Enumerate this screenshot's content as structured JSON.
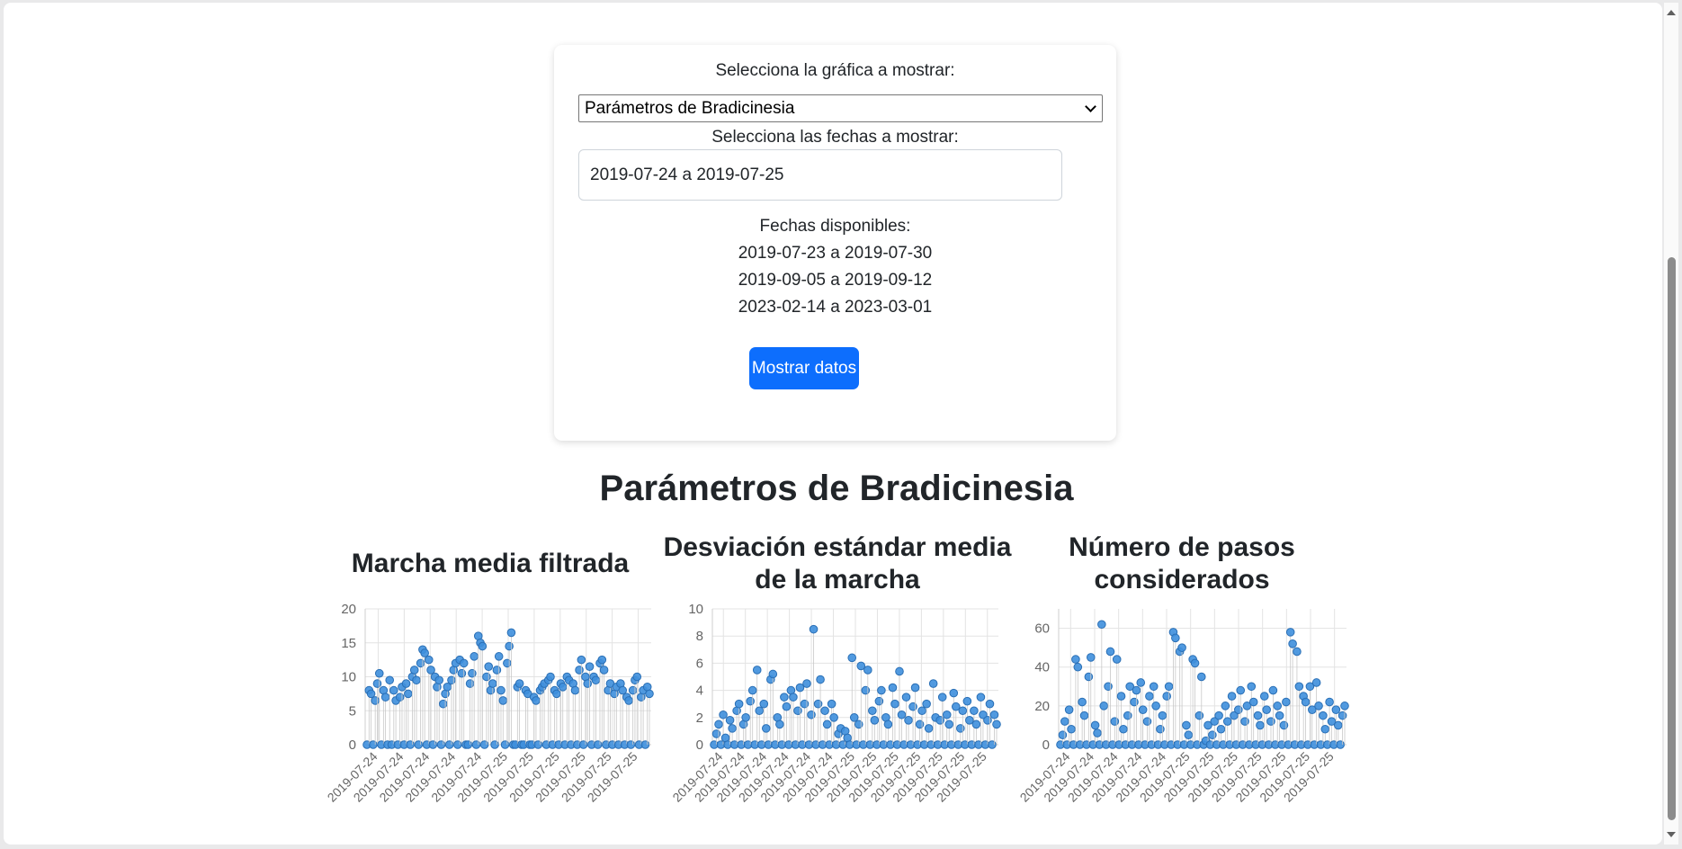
{
  "form": {
    "chart_select_label": "Selecciona la gráfica a mostrar:",
    "chart_select_value": "Parámetros de Bradicinesia",
    "dates_label": "Selecciona las fechas a mostrar:",
    "dates_value": "2019-07-24 a 2019-07-25",
    "available_label": "Fechas disponibles:",
    "available_ranges": [
      "2019-07-23 a 2019-07-30",
      "2019-09-05 a 2019-09-12",
      "2023-02-14 a 2023-03-01"
    ],
    "submit_label": "Mostrar datos"
  },
  "section_title": "Parámetros de Bradicinesia",
  "colors": {
    "accent": "#0d6efd",
    "point": "#3e8fdd",
    "point_stroke": "#2a6fb5"
  },
  "chart_data": [
    {
      "type": "scatter",
      "title": "Marcha media filtrada",
      "xlabel": "",
      "ylabel": "",
      "ylim": [
        0,
        20
      ],
      "yticks": [
        0,
        5,
        10,
        15,
        20
      ],
      "xticks": [
        "2019-07-24",
        "2019-07-24",
        "2019-07-24",
        "2019-07-24",
        "2019-07-24",
        "2019-07-25",
        "2019-07-25",
        "2019-07-25",
        "2019-07-25",
        "2019-07-25",
        "2019-07-25"
      ],
      "grid": true,
      "x_range": [
        "2019-07-24",
        "2019-07-25"
      ],
      "series": [
        {
          "values": [
            0,
            8,
            7.5,
            0,
            6.5,
            9,
            10.5,
            0,
            8,
            7,
            0,
            9.5,
            0,
            8,
            6.5,
            0,
            7,
            8.5,
            0,
            9,
            7.5,
            0,
            10,
            11,
            9.5,
            0,
            12,
            14,
            13.5,
            0,
            12.5,
            11,
            0,
            10,
            8.5,
            9.5,
            0,
            6,
            7.5,
            8.5,
            0,
            9.5,
            11,
            12,
            0,
            12.5,
            10.5,
            12,
            0,
            0,
            9,
            10.5,
            13,
            0,
            16,
            15,
            14.5,
            0,
            10,
            11.5,
            8,
            9,
            0,
            11,
            13,
            8,
            6.5,
            0,
            12,
            14.5,
            16.5,
            0,
            0,
            8.5,
            9,
            0,
            0,
            8,
            7.5,
            0,
            0,
            7,
            6.5,
            0,
            8,
            8.5,
            9,
            0,
            9.5,
            10,
            0,
            8,
            7.5,
            0,
            9,
            8.5,
            0,
            10,
            9.5,
            0,
            9,
            8,
            0,
            11,
            12.5,
            0,
            10,
            9,
            11.5,
            0,
            10,
            9.5,
            0,
            12,
            12.5,
            11,
            0,
            8,
            9,
            0,
            7.5,
            8.5,
            0,
            9,
            8,
            0,
            7,
            6.5,
            0,
            8,
            9.5,
            10,
            0,
            7,
            8,
            0,
            8.5,
            7.5
          ]
        }
      ]
    },
    {
      "type": "scatter",
      "title": "Desviación estándar media de la marcha",
      "xlabel": "",
      "ylabel": "",
      "ylim": [
        0,
        10
      ],
      "yticks": [
        0,
        2,
        4,
        6,
        8,
        10
      ],
      "xticks": [
        "2019-07-24",
        "2019-07-24",
        "2019-07-24",
        "2019-07-24",
        "2019-07-24",
        "2019-07-24",
        "2019-07-25",
        "2019-07-25",
        "2019-07-25",
        "2019-07-25",
        "2019-07-25",
        "2019-07-25",
        "2019-07-25"
      ],
      "grid": true,
      "x_range": [
        "2019-07-24",
        "2019-07-25"
      ],
      "series": [
        {
          "values": [
            0,
            0.8,
            1.5,
            0,
            2.2,
            0.5,
            0,
            1.8,
            1.2,
            0,
            2.5,
            3,
            0,
            1.5,
            2,
            0,
            3.2,
            4,
            0,
            5.5,
            2.5,
            0,
            3,
            1.2,
            0,
            4.8,
            5.2,
            0,
            2,
            1.5,
            0,
            3.5,
            2.8,
            0,
            4,
            3.5,
            0,
            2.5,
            4.2,
            0,
            3,
            4.5,
            0,
            2.2,
            8.5,
            0,
            3,
            4.8,
            0,
            2.5,
            1.5,
            0,
            3,
            2,
            0,
            0.8,
            1.2,
            0,
            1,
            0.5,
            0,
            6.4,
            2,
            0,
            1.5,
            5.8,
            0,
            4,
            5.5,
            0,
            2.5,
            1.8,
            0,
            3.2,
            4,
            0,
            2,
            1.5,
            0,
            4.2,
            3,
            0,
            5.4,
            2.2,
            0,
            3.5,
            1.8,
            0,
            2.8,
            4.2,
            0,
            1.5,
            2.5,
            0,
            3,
            1.2,
            0,
            4.5,
            2,
            0,
            1.8,
            3.5,
            0,
            2.2,
            1.5,
            0,
            3.8,
            2.8,
            0,
            1.2,
            2.5,
            0,
            3.2,
            1.8,
            0,
            2.5,
            1.5,
            0,
            3.5,
            2.2,
            0,
            1.8,
            3,
            0,
            2.2,
            1.5
          ]
        }
      ]
    },
    {
      "type": "scatter",
      "title": "Número de pasos considerados",
      "xlabel": "",
      "ylabel": "",
      "ylim": [
        0,
        70
      ],
      "yticks": [
        0,
        20,
        40,
        60
      ],
      "xticks": [
        "2019-07-24",
        "2019-07-24",
        "2019-07-24",
        "2019-07-24",
        "2019-07-24",
        "2019-07-25",
        "2019-07-25",
        "2019-07-25",
        "2019-07-25",
        "2019-07-25",
        "2019-07-25",
        "2019-07-25"
      ],
      "grid": true,
      "x_range": [
        "2019-07-24",
        "2019-07-25"
      ],
      "series": [
        {
          "values": [
            0,
            5,
            12,
            0,
            18,
            8,
            0,
            44,
            40,
            0,
            22,
            15,
            0,
            35,
            45,
            0,
            10,
            6,
            0,
            62,
            20,
            0,
            30,
            48,
            0,
            12,
            44,
            0,
            25,
            8,
            0,
            15,
            30,
            0,
            22,
            28,
            0,
            32,
            18,
            0,
            12,
            25,
            0,
            30,
            20,
            0,
            8,
            15,
            0,
            25,
            30,
            0,
            58,
            55,
            0,
            48,
            50,
            0,
            10,
            5,
            0,
            44,
            42,
            0,
            15,
            35,
            0,
            2,
            10,
            0,
            5,
            12,
            0,
            15,
            8,
            0,
            20,
            12,
            0,
            25,
            15,
            0,
            18,
            28,
            0,
            12,
            20,
            0,
            30,
            22,
            0,
            15,
            10,
            0,
            25,
            18,
            0,
            12,
            28,
            0,
            20,
            15,
            0,
            10,
            22,
            0,
            58,
            52,
            0,
            48,
            30,
            0,
            25,
            22,
            0,
            30,
            18,
            0,
            32,
            20,
            0,
            15,
            8,
            0,
            22,
            12,
            0,
            18,
            10,
            0,
            15,
            20
          ]
        }
      ]
    }
  ]
}
